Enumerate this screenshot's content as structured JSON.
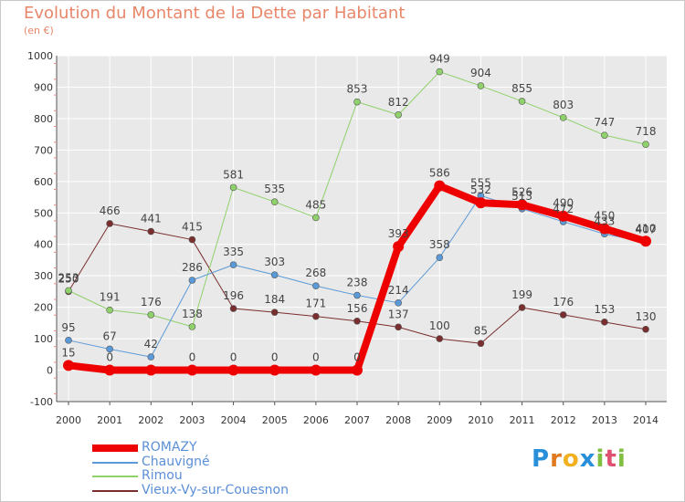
{
  "title": "Evolution du Montant de la Dette par Habitant",
  "subtitle": "(en €)",
  "logo": {
    "letters": [
      "P",
      "r",
      "o",
      "x",
      "i",
      "t",
      "i"
    ],
    "colors": [
      "#2a8fd9",
      "#e07a20",
      "#f0b020",
      "#2a8fd9",
      "#80c040",
      "#e05070",
      "#80c040"
    ]
  },
  "colors": {
    "grid": "#ffffff",
    "axis": "#555555",
    "title": "#e8866a",
    "legend_text": "#5b8fd6"
  },
  "chart_data": {
    "type": "line",
    "x": [
      "2000",
      "2001",
      "2002",
      "2003",
      "2004",
      "2005",
      "2006",
      "2007",
      "2008",
      "2009",
      "2010",
      "2011",
      "2012",
      "2013",
      "2014"
    ],
    "ylim": [
      -100,
      1000
    ],
    "yticks": [
      "-100",
      "0",
      "100",
      "200",
      "300",
      "400",
      "500",
      "600",
      "700",
      "800",
      "900",
      "1000"
    ],
    "series": [
      {
        "name": "Vieux-Vy-sur-Couesnon",
        "color": "#7a2e2e",
        "width": 1,
        "values": [
          250,
          466,
          441,
          415,
          196,
          184,
          171,
          156,
          137,
          100,
          85,
          199,
          176,
          153,
          130
        ],
        "labels": [
          "250",
          "466",
          "441",
          "415",
          "196",
          "184",
          "171",
          "156",
          "137",
          "100",
          "85",
          "199",
          "176",
          "153",
          "130"
        ]
      },
      {
        "name": "Rimou",
        "color": "#8fd16a",
        "width": 1,
        "values": [
          253,
          191,
          176,
          138,
          581,
          535,
          485,
          853,
          812,
          949,
          904,
          855,
          803,
          747,
          718
        ],
        "labels": [
          "253",
          "191",
          "176",
          "138",
          "581",
          "535",
          "485",
          "853",
          "812",
          "949",
          "904",
          "855",
          "803",
          "747",
          "718"
        ]
      },
      {
        "name": "Chauvigné",
        "color": "#5a9ad8",
        "width": 1,
        "values": [
          95,
          67,
          42,
          286,
          335,
          303,
          268,
          238,
          214,
          358,
          555,
          513,
          472,
          433,
          407
        ],
        "labels": [
          "95",
          "67",
          "42",
          "286",
          "335",
          "303",
          "268",
          "238",
          "214",
          "358",
          "555",
          "513",
          "472",
          "433",
          "407"
        ]
      },
      {
        "name": "ROMAZY",
        "color": "#ee0000",
        "width": 8,
        "values": [
          15,
          0,
          0,
          0,
          0,
          0,
          0,
          0,
          393,
          586,
          532,
          526,
          490,
          450,
          410
        ],
        "labels": [
          "15",
          "0",
          "",
          "0",
          "0",
          "0",
          "0",
          "0",
          "393",
          "586",
          "532",
          "526",
          "490",
          "450",
          "410"
        ]
      }
    ],
    "legend_order": [
      "ROMAZY",
      "Chauvigné",
      "Rimou",
      "Vieux-Vy-sur-Couesnon"
    ]
  }
}
